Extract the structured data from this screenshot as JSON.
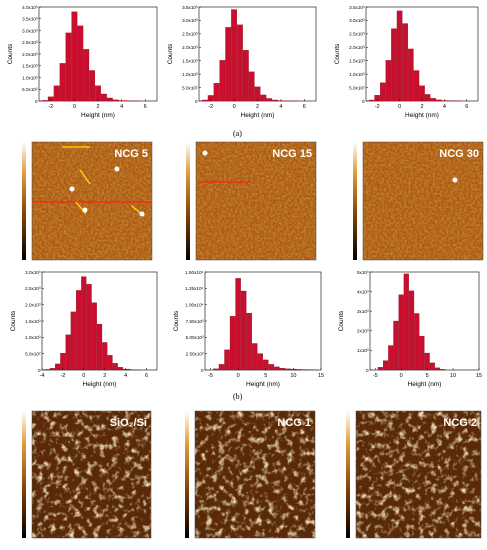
{
  "captions": {
    "a": "(a)",
    "b": "(b)"
  },
  "row_a": [
    {
      "ylabel": "Counts",
      "xlabel": "Height (nm)",
      "yticks": [
        "0",
        "5.0x10²",
        "1.0x10³",
        "1.5x10³",
        "2.0x10³",
        "2.5x10³",
        "3.0x10³",
        "3.5x10³",
        "4.0x10³"
      ],
      "xticks": [
        "-2",
        "0",
        "2",
        "4",
        "6"
      ]
    },
    {
      "ylabel": "Counts",
      "xlabel": "Height (nm)",
      "yticks": [
        "0",
        "5.0x10²",
        "1.0x10³",
        "1.5x10³",
        "2.0x10³",
        "2.5x10³",
        "3.0x10³",
        "3.5x10³"
      ],
      "xticks": [
        "-2",
        "0",
        "2",
        "4",
        "6"
      ]
    },
    {
      "ylabel": "Counts",
      "xlabel": "Height (nm)",
      "yticks": [
        "0",
        "5.0x10²",
        "1.0x10³",
        "1.5x10³",
        "2.0x10³",
        "2.5x10³",
        "3.0x10³",
        "3.5x10³"
      ],
      "xticks": [
        "-2",
        "0",
        "2",
        "4",
        "6"
      ]
    }
  ],
  "afm_b": [
    {
      "label": "NCG 5"
    },
    {
      "label": "NCG 15"
    },
    {
      "label": "NCG 30"
    }
  ],
  "row_b_hist": [
    {
      "ylabel": "Counts",
      "xlabel": "Height (nm)",
      "yticks": [
        "0",
        "5.0x10²",
        "1.0x10³",
        "1.5x10³",
        "2.0x10³",
        "2.5x10³",
        "3.0x10³"
      ],
      "xticks": [
        "-4",
        "-2",
        "0",
        "2",
        "4",
        "6"
      ]
    },
    {
      "ylabel": "Counts",
      "xlabel": "Height (nm)",
      "yticks": [
        "0",
        "2.50x10³",
        "5.00x10³",
        "7.50x10³",
        "1.00x10⁴",
        "1.25x10⁴",
        "1.50x10⁴"
      ],
      "xticks": [
        "-5",
        "0",
        "5",
        "10",
        "15"
      ]
    },
    {
      "ylabel": "Counts",
      "xlabel": "Height (nm)",
      "yticks": [
        "0",
        "1x10³",
        "2x10³",
        "3x10³",
        "4x10³",
        "5x10³"
      ],
      "xticks": [
        "-5",
        "0",
        "5",
        "10",
        "15"
      ]
    }
  ],
  "afm_c": [
    {
      "label": "SiO₂/Si"
    },
    {
      "label": "NCG 1"
    },
    {
      "label": "NCG 2"
    }
  ],
  "colors": {
    "bar": "#c8102e",
    "bar_edge": "#7a0a1a",
    "afm_dark": "#3a1a05",
    "afm_mid": "#a8560f",
    "afm_light": "#f5d9a0"
  },
  "chart_data": [
    {
      "type": "bar",
      "xlabel": "Height (nm)",
      "ylabel": "Counts",
      "x": [
        -2.5,
        -2,
        -1.5,
        -1,
        -0.5,
        0,
        0.5,
        1,
        1.5,
        2,
        2.5,
        3,
        3.5,
        4,
        5
      ],
      "values": [
        30,
        180,
        650,
        1600,
        2900,
        3800,
        3200,
        2200,
        1300,
        650,
        300,
        130,
        50,
        20,
        5
      ],
      "xlim": [
        -3,
        7
      ],
      "ylim": [
        0,
        4000
      ]
    },
    {
      "type": "bar",
      "xlabel": "Height (nm)",
      "ylabel": "Counts",
      "x": [
        -2.5,
        -2,
        -1.5,
        -1,
        -0.5,
        0,
        0.5,
        1,
        1.5,
        2,
        2.5,
        3,
        3.5,
        4,
        5
      ],
      "values": [
        40,
        220,
        700,
        1600,
        2900,
        3600,
        3000,
        2000,
        1150,
        560,
        240,
        100,
        40,
        15,
        4
      ],
      "xlim": [
        -3,
        7
      ],
      "ylim": [
        0,
        3700
      ]
    },
    {
      "type": "bar",
      "xlabel": "Height (nm)",
      "ylabel": "Counts",
      "x": [
        -2.5,
        -2,
        -1.5,
        -1,
        -0.5,
        0,
        0.5,
        1,
        1.5,
        2,
        2.5,
        3,
        3.5,
        4,
        5
      ],
      "values": [
        40,
        230,
        720,
        1600,
        2850,
        3550,
        3050,
        2050,
        1200,
        600,
        260,
        110,
        45,
        18,
        5
      ],
      "xlim": [
        -3,
        7
      ],
      "ylim": [
        0,
        3700
      ]
    },
    {
      "type": "bar",
      "xlabel": "Height (nm)",
      "ylabel": "Counts",
      "x": [
        -3.5,
        -3,
        -2.5,
        -2,
        -1.5,
        -1,
        -0.5,
        0,
        0.5,
        1,
        1.5,
        2,
        2.5,
        3,
        3.5,
        4,
        5
      ],
      "values": [
        20,
        60,
        200,
        550,
        1150,
        1900,
        2600,
        3050,
        2800,
        2200,
        1500,
        900,
        480,
        220,
        90,
        30,
        8
      ],
      "xlim": [
        -4,
        7
      ],
      "ylim": [
        0,
        3200
      ]
    },
    {
      "type": "bar",
      "xlabel": "Height (nm)",
      "ylabel": "Counts",
      "x": [
        -4,
        -3,
        -2,
        -1,
        0,
        1,
        2,
        3,
        4,
        5,
        6,
        7,
        8,
        9,
        10,
        11,
        12,
        13,
        14
      ],
      "values": [
        200,
        900,
        3200,
        8500,
        14500,
        12500,
        9000,
        4200,
        2600,
        1600,
        900,
        500,
        300,
        200,
        150,
        100,
        80,
        60,
        40
      ],
      "xlim": [
        -6,
        15
      ],
      "ylim": [
        0,
        15500
      ]
    },
    {
      "type": "bar",
      "xlabel": "Height (nm)",
      "ylabel": "Counts",
      "x": [
        -4,
        -3,
        -2,
        -1,
        0,
        1,
        2,
        3,
        4,
        5,
        6,
        7,
        8
      ],
      "values": [
        150,
        500,
        1300,
        2600,
        4000,
        5100,
        4200,
        3000,
        1800,
        900,
        380,
        120,
        40
      ],
      "xlim": [
        -6,
        15
      ],
      "ylim": [
        0,
        5200
      ]
    }
  ]
}
